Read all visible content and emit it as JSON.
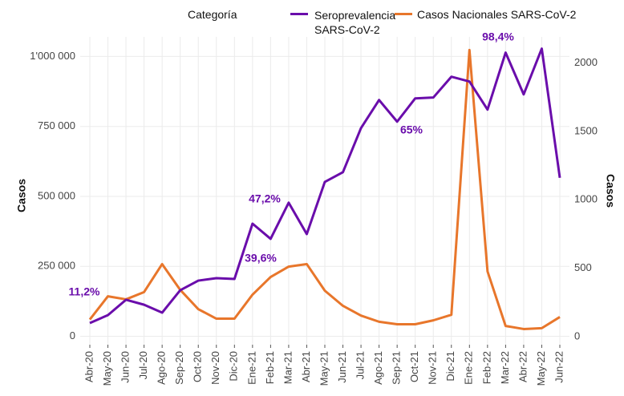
{
  "chart_data": {
    "type": "line",
    "legend_title": "Categoría",
    "ylabel": "Casos",
    "y2label": "Casos",
    "categories": [
      "Abr-20",
      "May-20",
      "Jun-20",
      "Jul-20",
      "Ago-20",
      "Sep-20",
      "Oct-20",
      "Nov-20",
      "Dic-20",
      "Ene-21",
      "Feb-21",
      "Mar-21",
      "Abr-21",
      "May-21",
      "Jun-21",
      "Jul-21",
      "Ago-21",
      "Sep-21",
      "Oct-21",
      "Nov-21",
      "Dic-21",
      "Ene-22",
      "Feb-22",
      "Mar-22",
      "Abr-22",
      "May-22",
      "Jun-22"
    ],
    "series": [
      {
        "name": "Seroprevalencia SARS-CoV-2",
        "color": "#6a0dab",
        "axis": "y2",
        "values": [
          100,
          158,
          270,
          234,
          176,
          340,
          410,
          428,
          422,
          826,
          715,
          979,
          750,
          1131,
          1202,
          1524,
          1729,
          1571,
          1741,
          1747,
          1899,
          1864,
          1659,
          2075,
          1770,
          2104,
          1161
        ]
      },
      {
        "name": "Casos Nacionales SARS-CoV-2",
        "color": "#e8762b",
        "values": [
          60000,
          143000,
          132000,
          158000,
          258000,
          166000,
          97000,
          63000,
          63000,
          149000,
          212000,
          249000,
          258000,
          163000,
          109000,
          74000,
          52000,
          43000,
          43000,
          57000,
          77000,
          1023000,
          232000,
          37000,
          26000,
          29000,
          69000
        ]
      }
    ],
    "annotations": [
      "11,2%",
      "39,6%",
      "47,2%",
      "65%",
      "98,4%"
    ],
    "annotation_color": "#6a0dab",
    "ylim": [
      -30000,
      1070000
    ],
    "yticks": [
      0,
      {
        "value": 250000,
        "label": "250 000"
      },
      {
        "value": 500000,
        "label": "500 000"
      },
      {
        "value": 750000,
        "label": "750 000"
      },
      {
        "value": 1000000,
        "label": "1'000 000"
      }
    ],
    "y2lim": [
      -58,
      2190
    ],
    "y2ticks": [
      0,
      500,
      1000,
      1500,
      2000
    ],
    "grid": true
  }
}
